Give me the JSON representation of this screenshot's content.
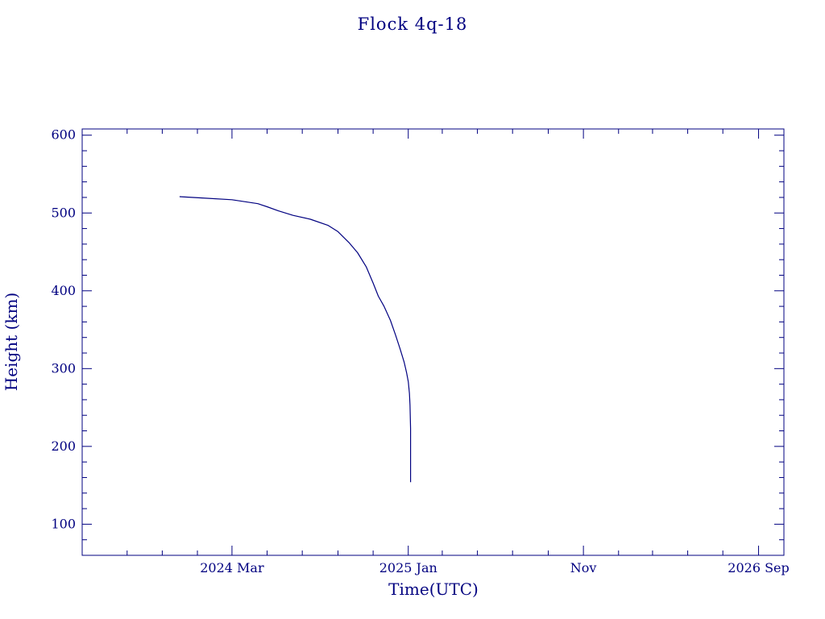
{
  "chart_data": {
    "type": "line",
    "title": "Flock 4q-18",
    "xlabel": "Time(UTC)",
    "ylabel": "Height (km)",
    "color": "#000080",
    "xlim": [
      "2023-06-15",
      "2026-10-15"
    ],
    "ylim": [
      60,
      608
    ],
    "grid": false,
    "x_tick_labels": [
      {
        "date": "2024-03-01",
        "label": "2024 Mar"
      },
      {
        "date": "2025-01-01",
        "label": "2025 Jan"
      },
      {
        "date": "2025-11-01",
        "label": "Nov"
      },
      {
        "date": "2026-09-01",
        "label": "2026 Sep"
      }
    ],
    "x_minor_dates": [
      "2023-09-01",
      "2023-11-01",
      "2024-01-01",
      "2024-05-01",
      "2024-07-01",
      "2024-09-01",
      "2024-11-01",
      "2025-03-01",
      "2025-05-01",
      "2025-07-01",
      "2025-09-01",
      "2026-01-01",
      "2026-03-01",
      "2026-05-01",
      "2026-07-01"
    ],
    "y_ticks": [
      100,
      200,
      300,
      400,
      500,
      600
    ],
    "y_minor_step": 20,
    "series": [
      {
        "x": [
          "2023-12-01",
          "2024-01-15",
          "2024-03-01",
          "2024-04-15",
          "2024-05-01",
          "2024-05-20",
          "2024-06-15",
          "2024-07-15",
          "2024-08-15",
          "2024-09-01",
          "2024-09-20",
          "2024-10-05",
          "2024-10-20",
          "2024-11-01",
          "2024-11-10",
          "2024-11-20",
          "2024-12-01",
          "2024-12-10",
          "2024-12-18",
          "2024-12-25",
          "2024-12-29",
          "2025-01-01",
          "2025-01-03",
          "2025-01-04",
          "2025-01-05",
          "2025-01-05"
        ],
        "y": [
          521,
          519,
          517,
          512,
          508,
          503,
          497,
          492,
          484,
          476,
          462,
          449,
          431,
          410,
          393,
          380,
          362,
          343,
          325,
          308,
          295,
          283,
          268,
          253,
          223,
          154
        ]
      }
    ]
  }
}
